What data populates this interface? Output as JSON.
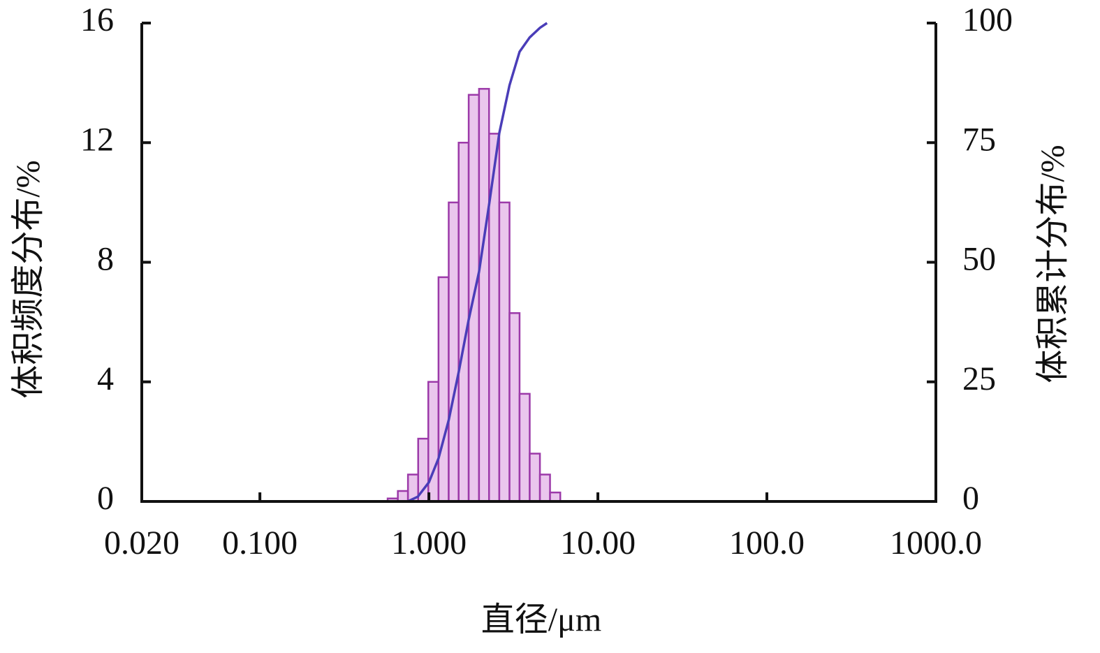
{
  "chart_data": {
    "type": "histogram",
    "xlabel": "直径/μm",
    "ylabel": "体积频度分布/%",
    "y2label": "体积累计分布/%",
    "xscale": "log",
    "xlim": [
      0.02,
      1000
    ],
    "xticks": [
      {
        "value": 0.02,
        "label": "0.020"
      },
      {
        "value": 0.1,
        "label": "0.100"
      },
      {
        "value": 1,
        "label": "1.000"
      },
      {
        "value": 10,
        "label": "10.00"
      },
      {
        "value": 100,
        "label": "100.0"
      },
      {
        "value": 1000,
        "label": "1000.0"
      }
    ],
    "ylim": [
      0,
      16
    ],
    "yticks": [
      0,
      4,
      8,
      12,
      16
    ],
    "y2lim": [
      0,
      100
    ],
    "y2ticks": [
      0,
      25,
      50,
      75,
      100
    ],
    "bins": [
      0.57,
      0.655,
      0.752,
      0.864,
      0.992,
      1.14,
      1.31,
      1.5,
      1.72,
      1.98,
      2.27,
      2.61,
      3.0,
      3.44,
      3.95,
      4.54,
      5.21,
      5.99
    ],
    "values": [
      0.1,
      0.35,
      0.9,
      2.1,
      4.0,
      7.5,
      10.0,
      12.0,
      13.6,
      13.8,
      12.3,
      10.0,
      6.3,
      3.6,
      1.6,
      0.9,
      0.3
    ],
    "color": "#eac6ed",
    "edgecolor": "#9c3aa9",
    "cumulative": {
      "axis": "y2",
      "color": "#4a3db8",
      "x": [
        0.75,
        0.86,
        1.0,
        1.14,
        1.31,
        1.5,
        1.72,
        1.98,
        2.27,
        2.61,
        3.0,
        3.44,
        3.95,
        4.54,
        5.0
      ],
      "values": [
        0,
        1,
        4,
        9,
        17,
        27,
        38,
        48,
        62,
        77,
        87,
        94,
        97,
        99,
        100
      ]
    }
  }
}
